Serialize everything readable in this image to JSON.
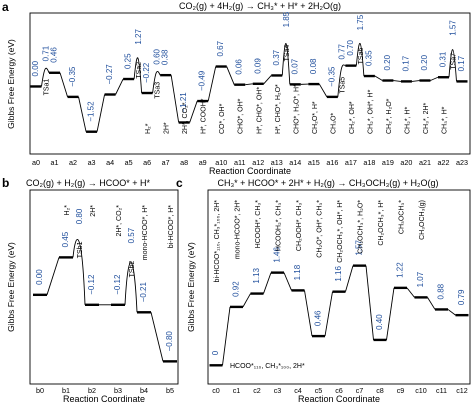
{
  "figure": {
    "panel_a": {
      "letter": "a",
      "title": "CO₂(g) + 4H₂(g) → CH₃* + H* + 2H₂O(g)",
      "ylabel": "Gibbs Free Energy (eV)",
      "xlabel": "Reaction Coordinate"
    },
    "panel_b": {
      "letter": "b",
      "title": "CO₂(g) + H₂(g) → HCOO* + H*",
      "ylabel": "Gibbs Free Energy (eV)",
      "xlabel": "Reaction Coordinate"
    },
    "panel_c": {
      "letter": "c",
      "title": "CH₃* + HCOO* + 2H* + H₂(g) → CH₃OCH₃(g) + H₂O(g)",
      "ylabel": "Gibbs Free Energy (eV)",
      "xlabel": "Reaction Coordinate",
      "bottom_note": "HCOO*₁₁₀, CH₃*₁₀₀, 2H*"
    }
  },
  "chart_data": [
    {
      "type": "line",
      "panel": "a",
      "title": "CO₂(g) + 4H₂(g) → CH₃* + H* + 2H₂O(g)",
      "ylabel": "Gibbs Free Energy (eV)",
      "xlabel": "Reaction Coordinate",
      "ylim": [
        -2.0,
        2.3
      ],
      "colors": {
        "values": "#1f4e9c",
        "green_ticks": "#2e8b2e",
        "orange": "#e08a00"
      },
      "categories": [
        "a0",
        "a1",
        "a2",
        "a3",
        "a4",
        "a5",
        "a6",
        "a7",
        "a8",
        "a9",
        "a10",
        "a11",
        "a12",
        "a13",
        "a14",
        "a15",
        "a16",
        "a17",
        "a18",
        "a19",
        "a20",
        "a21",
        "a22",
        "a23"
      ],
      "green_categories": [
        "a4",
        "a5",
        "a11",
        "a12",
        "a13",
        "a14",
        "a21",
        "a22"
      ],
      "orange_categories": [
        "a18"
      ],
      "levels": [
        {
          "x": "a0",
          "value": 0.0,
          "label": "0.00"
        },
        {
          "x": "a1",
          "value": 0.46,
          "label": "0.46"
        },
        {
          "x": "a2",
          "value": -0.35,
          "label": "−0.35"
        },
        {
          "x": "a3",
          "value": -1.52,
          "label": "−1.52"
        },
        {
          "x": "a4",
          "value": -0.27,
          "label": "−0.27"
        },
        {
          "x": "a5",
          "value": 0.25,
          "label": "0.25"
        },
        {
          "x": "a6",
          "value": -0.22,
          "label": "−0.22"
        },
        {
          "x": "a7",
          "value": 0.38,
          "label": "0.38"
        },
        {
          "x": "a8",
          "value": -1.21,
          "label": "−1.21"
        },
        {
          "x": "a9",
          "value": -0.49,
          "label": "−0.49"
        },
        {
          "x": "a10",
          "value": 0.67,
          "label": "0.67"
        },
        {
          "x": "a11",
          "value": 0.06,
          "label": "0.06"
        },
        {
          "x": "a12",
          "value": 0.09,
          "label": "0.09"
        },
        {
          "x": "a13",
          "value": 0.37,
          "label": "0.37"
        },
        {
          "x": "a14",
          "value": 0.07,
          "label": "0.07"
        },
        {
          "x": "a15",
          "value": 0.08,
          "label": "0.08"
        },
        {
          "x": "a16",
          "value": -0.35,
          "label": "−0.35"
        },
        {
          "x": "a17",
          "value": 0.7,
          "label": "0.70"
        },
        {
          "x": "a18",
          "value": 0.35,
          "label": "0.35"
        },
        {
          "x": "a19",
          "value": 0.2,
          "label": "0.20"
        },
        {
          "x": "a20",
          "value": 0.17,
          "label": "0.17"
        },
        {
          "x": "a21",
          "value": 0.2,
          "label": "0.20"
        },
        {
          "x": "a22",
          "value": 0.31,
          "label": "0.31"
        },
        {
          "x": "a23",
          "value": 0.17,
          "label": "0.17"
        }
      ],
      "transition_states": [
        {
          "name": "TSa1",
          "between": [
            "a0",
            "a1"
          ],
          "value": 0.71,
          "label": "0.71"
        },
        {
          "name": "TSa2",
          "between": [
            "a5",
            "a6"
          ],
          "value": 1.27,
          "label": "1.27"
        },
        {
          "name": "TSa3",
          "between": [
            "a6",
            "a7"
          ],
          "value": 0.6,
          "label": "0.60"
        },
        {
          "name": "TSa4",
          "between": [
            "a13",
            "a14"
          ],
          "value": 1.85,
          "label": "1.85"
        },
        {
          "name": "TSa5",
          "between": [
            "a16",
            "a17"
          ],
          "value": 0.77,
          "label": "0.77"
        },
        {
          "name": "TSa6",
          "between": [
            "a17",
            "a18"
          ],
          "value": 1.75,
          "label": "1.75"
        },
        {
          "name": "TSa7",
          "between": [
            "a22",
            "a23"
          ],
          "value": 1.57,
          "label": "1.57"
        }
      ],
      "species_labels": [
        "H₂*",
        "2H*",
        "2H*, CO₂*",
        "H*, COOH*",
        "CO*, OH*",
        "CHO*, OH*",
        "H*, CHO*, OH*",
        "H*, CHO*, H₂O*",
        "CHO*, H₂O*, H*",
        "CH₂O*, H*",
        "CH₃O*",
        "CH₂*, OH*",
        "CH₂*, OH*, H*",
        "CH₂*, H₂O*",
        "CH₂*, H*",
        "CH₃*, 2H*",
        "CH₃*, H*"
      ]
    },
    {
      "type": "line",
      "panel": "b",
      "title": "CO₂(g) + H₂(g) → HCOO* + H*",
      "ylabel": "Gibbs Free Energy (eV)",
      "xlabel": "Reaction Coordinate",
      "ylim": [
        -1.0,
        1.2
      ],
      "categories": [
        "b0",
        "b1",
        "b2",
        "b3",
        "b4",
        "b5"
      ],
      "levels": [
        {
          "x": "b0",
          "value": 0.0,
          "label": "0.00"
        },
        {
          "x": "b1",
          "value": 0.45,
          "label": "0.45"
        },
        {
          "x": "b2",
          "value": -0.12,
          "label": "−0.12"
        },
        {
          "x": "b3",
          "value": -0.12,
          "label": "−0.12"
        },
        {
          "x": "b4",
          "value": -0.21,
          "label": "−0.21"
        },
        {
          "x": "b5",
          "value": -0.8,
          "label": "−0.80"
        }
      ],
      "transition_states": [
        {
          "name": "TSb1",
          "between": [
            "b1",
            "b2"
          ],
          "value": 0.8,
          "label": "0.80"
        },
        {
          "name": "TSb2",
          "between": [
            "b3",
            "b4"
          ],
          "value": 0.57,
          "label": "0.57"
        }
      ],
      "species_labels": [
        "H₂*",
        "2H*",
        "2H*, CO₂*",
        "mono-HCOO*, H*",
        "bi-HCOO*, H*"
      ]
    },
    {
      "type": "line",
      "panel": "c",
      "title": "CH₃* + HCOO* + 2H* + H₂(g) → CH₃OCH₃(g) + H₂O(g)",
      "ylabel": "Gibbs Free Energy (eV)",
      "xlabel": "Reaction Coordinate",
      "ylim": [
        -0.2,
        2.1
      ],
      "categories": [
        "c0",
        "c1",
        "c2",
        "c3",
        "c4",
        "c5",
        "c6",
        "c7",
        "c8",
        "c9",
        "c10",
        "c11",
        "c12"
      ],
      "levels": [
        {
          "x": "c0",
          "value": 0.0,
          "label": "0"
        },
        {
          "x": "c1",
          "value": 0.92,
          "label": "0.92"
        },
        {
          "x": "c2",
          "value": 1.13,
          "label": "1.13"
        },
        {
          "x": "c3",
          "value": 1.46,
          "label": "1.46"
        },
        {
          "x": "c4",
          "value": 1.18,
          "label": "1.18"
        },
        {
          "x": "c5",
          "value": 0.46,
          "label": "0.46"
        },
        {
          "x": "c6",
          "value": 1.16,
          "label": "1.16"
        },
        {
          "x": "c7",
          "value": 1.57,
          "label": "1.57"
        },
        {
          "x": "c8",
          "value": 0.4,
          "label": "0.40"
        },
        {
          "x": "c9",
          "value": 1.22,
          "label": "1.22"
        },
        {
          "x": "c10",
          "value": 1.07,
          "label": "1.07"
        },
        {
          "x": "c11",
          "value": 0.88,
          "label": "0.88"
        },
        {
          "x": "c12",
          "value": 0.79,
          "label": "0.79"
        }
      ],
      "transition_states": [],
      "species_labels": [
        "bi-HCOO*₁₁₀, CH₃*₁₀₀, 2H*",
        "mono-HCOO*, 2H*",
        "HCOOH*, CH₃*",
        "HCOOH₂*, CH₃*",
        "CH₂OOH*, CH₃*",
        "CH₂O*, OH*, CH₃*",
        "CH₂OCH₃*, OH*, H*",
        "CH₂OCH₃*, H₂O*",
        "CH₂OCH₃*, H*",
        "CH₃OCH₃*",
        "CH₃OCH₃(g)"
      ]
    }
  ]
}
